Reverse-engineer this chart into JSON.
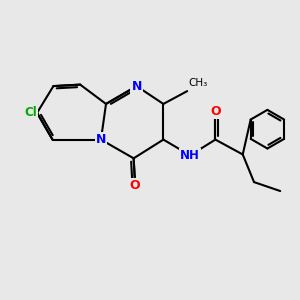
{
  "background_color": "#e8e8e8",
  "bond_color": "#000000",
  "atom_colors": {
    "N": "#0000ff",
    "O": "#ff0000",
    "Cl": "#00aa00",
    "C": "#000000",
    "H": "#555555"
  },
  "figsize": [
    3.0,
    3.0
  ],
  "dpi": 100
}
